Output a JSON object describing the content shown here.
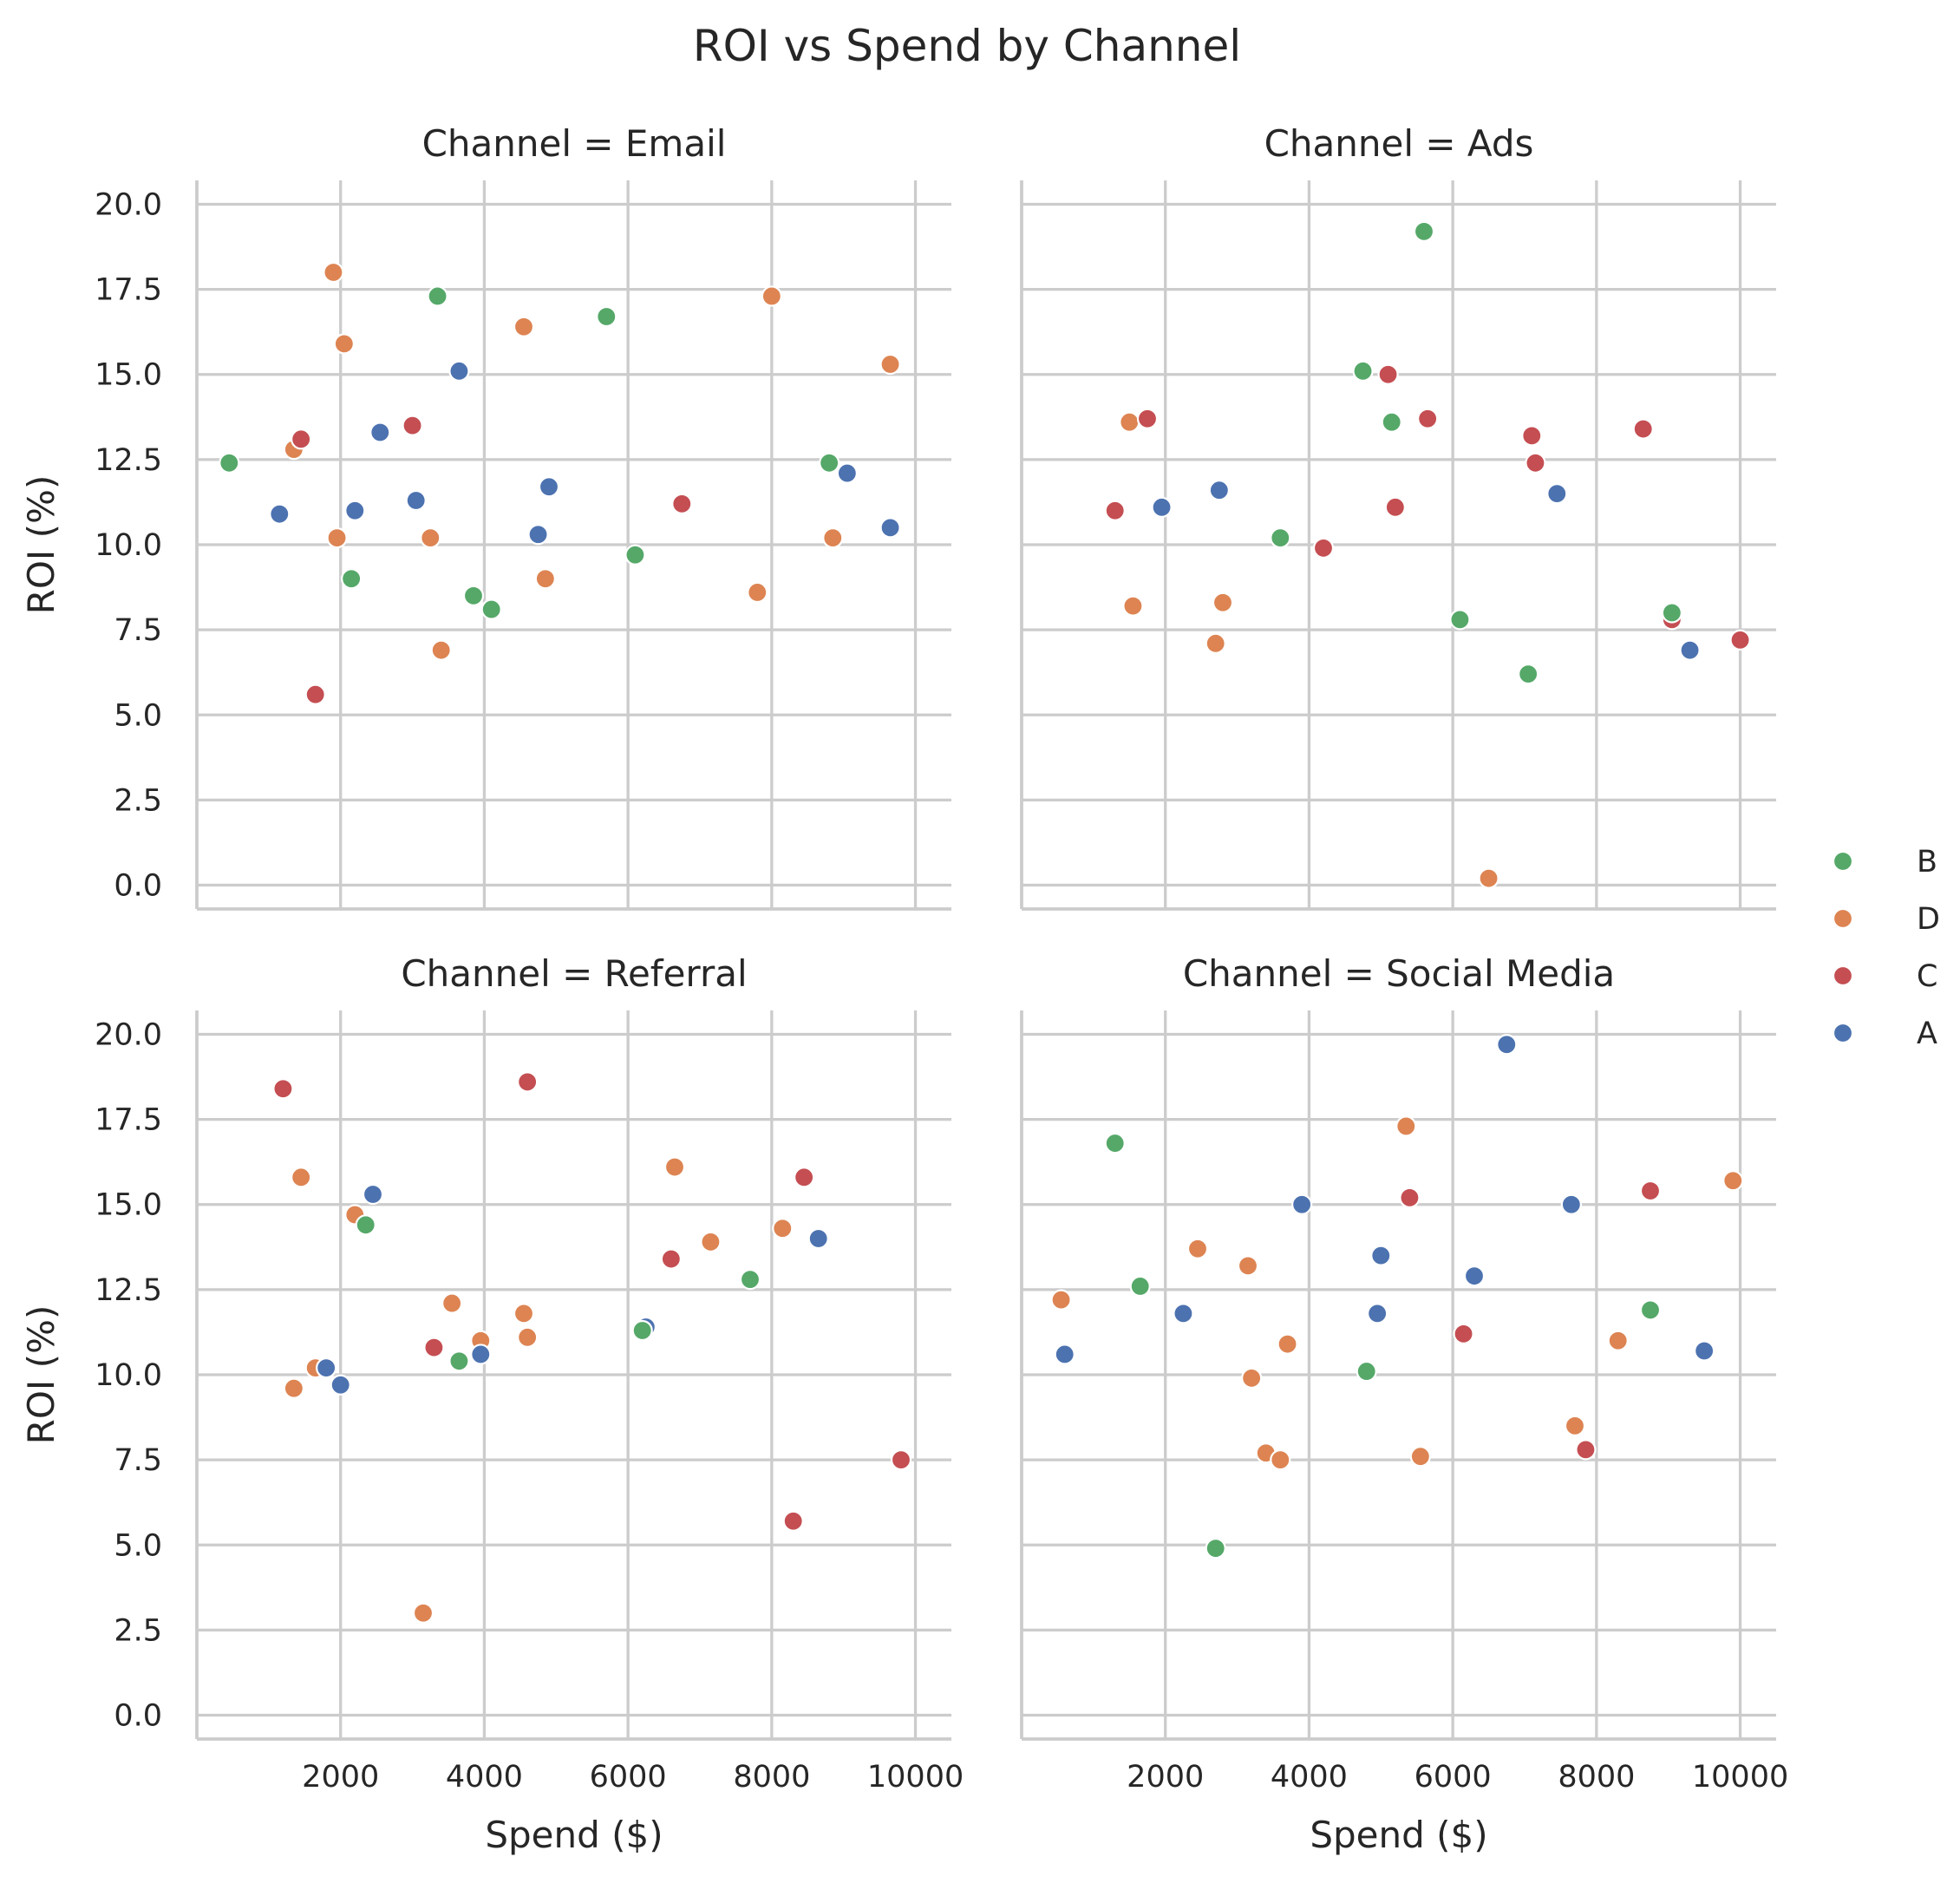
{
  "chart_data": {
    "type": "scatter",
    "title": "ROI vs Spend by Channel",
    "xlabel": "Spend ($)",
    "ylabel": "ROI (%)",
    "xlim": [
      0,
      10500
    ],
    "ylim": [
      -0.7,
      20.7
    ],
    "xticks": [
      2000,
      4000,
      6000,
      8000,
      10000
    ],
    "yticks": [
      0.0,
      2.5,
      5.0,
      7.5,
      10.0,
      12.5,
      15.0,
      17.5,
      20.0
    ],
    "grid": true,
    "legend_position": "right",
    "hue_order": [
      "B",
      "D",
      "C",
      "A"
    ],
    "colors": {
      "B": "#55a868",
      "D": "#dd8452",
      "C": "#c44e52",
      "A": "#4c72b0"
    },
    "facets": [
      {
        "title": "Channel = Email",
        "points": [
          {
            "x": 450,
            "y": 12.4,
            "g": "B"
          },
          {
            "x": 1150,
            "y": 10.9,
            "g": "A"
          },
          {
            "x": 1350,
            "y": 12.8,
            "g": "D"
          },
          {
            "x": 1450,
            "y": 13.1,
            "g": "C"
          },
          {
            "x": 1650,
            "y": 5.6,
            "g": "C"
          },
          {
            "x": 1900,
            "y": 18.0,
            "g": "D"
          },
          {
            "x": 1950,
            "y": 10.2,
            "g": "D"
          },
          {
            "x": 2050,
            "y": 15.9,
            "g": "D"
          },
          {
            "x": 2150,
            "y": 9.0,
            "g": "B"
          },
          {
            "x": 2200,
            "y": 11.0,
            "g": "A"
          },
          {
            "x": 2550,
            "y": 13.3,
            "g": "A"
          },
          {
            "x": 3000,
            "y": 13.5,
            "g": "C"
          },
          {
            "x": 3050,
            "y": 11.3,
            "g": "A"
          },
          {
            "x": 3250,
            "y": 10.2,
            "g": "D"
          },
          {
            "x": 3350,
            "y": 17.3,
            "g": "B"
          },
          {
            "x": 3400,
            "y": 6.9,
            "g": "D"
          },
          {
            "x": 3650,
            "y": 15.1,
            "g": "A"
          },
          {
            "x": 3850,
            "y": 8.5,
            "g": "B"
          },
          {
            "x": 4100,
            "y": 8.1,
            "g": "B"
          },
          {
            "x": 4550,
            "y": 16.4,
            "g": "D"
          },
          {
            "x": 4750,
            "y": 10.3,
            "g": "A"
          },
          {
            "x": 4850,
            "y": 9.0,
            "g": "D"
          },
          {
            "x": 4900,
            "y": 11.7,
            "g": "A"
          },
          {
            "x": 5700,
            "y": 16.7,
            "g": "B"
          },
          {
            "x": 6100,
            "y": 9.7,
            "g": "B"
          },
          {
            "x": 6750,
            "y": 11.2,
            "g": "C"
          },
          {
            "x": 7800,
            "y": 8.6,
            "g": "D"
          },
          {
            "x": 8000,
            "y": 17.3,
            "g": "D"
          },
          {
            "x": 8800,
            "y": 12.4,
            "g": "B"
          },
          {
            "x": 8850,
            "y": 10.2,
            "g": "D"
          },
          {
            "x": 9050,
            "y": 12.1,
            "g": "A"
          },
          {
            "x": 9650,
            "y": 15.3,
            "g": "D"
          },
          {
            "x": 9650,
            "y": 10.5,
            "g": "A"
          }
        ]
      },
      {
        "title": "Channel = Ads",
        "points": [
          {
            "x": 1300,
            "y": 11.0,
            "g": "C"
          },
          {
            "x": 1500,
            "y": 13.6,
            "g": "D"
          },
          {
            "x": 1550,
            "y": 8.2,
            "g": "D"
          },
          {
            "x": 1750,
            "y": 13.7,
            "g": "C"
          },
          {
            "x": 1950,
            "y": 11.1,
            "g": "A"
          },
          {
            "x": 2700,
            "y": 7.1,
            "g": "D"
          },
          {
            "x": 2750,
            "y": 11.6,
            "g": "A"
          },
          {
            "x": 2800,
            "y": 8.3,
            "g": "D"
          },
          {
            "x": 3600,
            "y": 10.2,
            "g": "B"
          },
          {
            "x": 4200,
            "y": 9.9,
            "g": "C"
          },
          {
            "x": 4750,
            "y": 15.1,
            "g": "B"
          },
          {
            "x": 5100,
            "y": 15.0,
            "g": "C"
          },
          {
            "x": 5150,
            "y": 13.6,
            "g": "B"
          },
          {
            "x": 5200,
            "y": 11.1,
            "g": "C"
          },
          {
            "x": 5600,
            "y": 19.2,
            "g": "B"
          },
          {
            "x": 5650,
            "y": 13.7,
            "g": "C"
          },
          {
            "x": 6100,
            "y": 7.8,
            "g": "B"
          },
          {
            "x": 6500,
            "y": 0.2,
            "g": "D"
          },
          {
            "x": 7050,
            "y": 6.2,
            "g": "B"
          },
          {
            "x": 7100,
            "y": 13.2,
            "g": "C"
          },
          {
            "x": 7150,
            "y": 12.4,
            "g": "C"
          },
          {
            "x": 7450,
            "y": 11.5,
            "g": "A"
          },
          {
            "x": 8650,
            "y": 13.4,
            "g": "C"
          },
          {
            "x": 9050,
            "y": 7.8,
            "g": "C"
          },
          {
            "x": 9050,
            "y": 8.0,
            "g": "B"
          },
          {
            "x": 9300,
            "y": 6.9,
            "g": "A"
          },
          {
            "x": 10000,
            "y": 7.2,
            "g": "C"
          }
        ]
      },
      {
        "title": "Channel = Referral",
        "points": [
          {
            "x": 1200,
            "y": 18.4,
            "g": "C"
          },
          {
            "x": 1350,
            "y": 9.6,
            "g": "D"
          },
          {
            "x": 1450,
            "y": 15.8,
            "g": "D"
          },
          {
            "x": 1650,
            "y": 10.2,
            "g": "D"
          },
          {
            "x": 1800,
            "y": 10.2,
            "g": "A"
          },
          {
            "x": 2000,
            "y": 9.7,
            "g": "A"
          },
          {
            "x": 2200,
            "y": 14.7,
            "g": "D"
          },
          {
            "x": 2350,
            "y": 14.4,
            "g": "B"
          },
          {
            "x": 2450,
            "y": 15.3,
            "g": "A"
          },
          {
            "x": 3150,
            "y": 3.0,
            "g": "D"
          },
          {
            "x": 3300,
            "y": 10.8,
            "g": "C"
          },
          {
            "x": 3550,
            "y": 12.1,
            "g": "D"
          },
          {
            "x": 3650,
            "y": 10.4,
            "g": "B"
          },
          {
            "x": 3950,
            "y": 11.0,
            "g": "D"
          },
          {
            "x": 3950,
            "y": 10.6,
            "g": "A"
          },
          {
            "x": 4550,
            "y": 11.8,
            "g": "D"
          },
          {
            "x": 4600,
            "y": 18.6,
            "g": "C"
          },
          {
            "x": 4600,
            "y": 11.1,
            "g": "D"
          },
          {
            "x": 6250,
            "y": 11.4,
            "g": "A"
          },
          {
            "x": 6200,
            "y": 11.3,
            "g": "B"
          },
          {
            "x": 6600,
            "y": 13.4,
            "g": "C"
          },
          {
            "x": 6650,
            "y": 16.1,
            "g": "D"
          },
          {
            "x": 7150,
            "y": 13.9,
            "g": "D"
          },
          {
            "x": 7700,
            "y": 12.8,
            "g": "B"
          },
          {
            "x": 8150,
            "y": 14.3,
            "g": "D"
          },
          {
            "x": 8300,
            "y": 5.7,
            "g": "C"
          },
          {
            "x": 8450,
            "y": 15.8,
            "g": "C"
          },
          {
            "x": 8650,
            "y": 14.0,
            "g": "A"
          },
          {
            "x": 9800,
            "y": 7.5,
            "g": "C"
          }
        ]
      },
      {
        "title": "Channel = Social Media",
        "points": [
          {
            "x": 550,
            "y": 12.2,
            "g": "D"
          },
          {
            "x": 600,
            "y": 10.6,
            "g": "A"
          },
          {
            "x": 1300,
            "y": 16.8,
            "g": "B"
          },
          {
            "x": 1650,
            "y": 12.6,
            "g": "B"
          },
          {
            "x": 2250,
            "y": 11.8,
            "g": "A"
          },
          {
            "x": 2450,
            "y": 13.7,
            "g": "D"
          },
          {
            "x": 2700,
            "y": 4.9,
            "g": "B"
          },
          {
            "x": 3150,
            "y": 13.2,
            "g": "D"
          },
          {
            "x": 3200,
            "y": 9.9,
            "g": "D"
          },
          {
            "x": 3400,
            "y": 7.7,
            "g": "D"
          },
          {
            "x": 3600,
            "y": 7.5,
            "g": "D"
          },
          {
            "x": 3700,
            "y": 10.9,
            "g": "D"
          },
          {
            "x": 3900,
            "y": 15.0,
            "g": "A"
          },
          {
            "x": 4800,
            "y": 10.1,
            "g": "B"
          },
          {
            "x": 4950,
            "y": 11.8,
            "g": "A"
          },
          {
            "x": 5000,
            "y": 13.5,
            "g": "A"
          },
          {
            "x": 5350,
            "y": 17.3,
            "g": "D"
          },
          {
            "x": 5400,
            "y": 15.2,
            "g": "C"
          },
          {
            "x": 5550,
            "y": 7.6,
            "g": "D"
          },
          {
            "x": 6150,
            "y": 11.2,
            "g": "C"
          },
          {
            "x": 6300,
            "y": 12.9,
            "g": "A"
          },
          {
            "x": 6750,
            "y": 19.7,
            "g": "A"
          },
          {
            "x": 7650,
            "y": 15.0,
            "g": "A"
          },
          {
            "x": 7700,
            "y": 8.5,
            "g": "D"
          },
          {
            "x": 7850,
            "y": 7.8,
            "g": "C"
          },
          {
            "x": 8300,
            "y": 11.0,
            "g": "D"
          },
          {
            "x": 8750,
            "y": 15.4,
            "g": "C"
          },
          {
            "x": 8750,
            "y": 11.9,
            "g": "B"
          },
          {
            "x": 9500,
            "y": 10.7,
            "g": "A"
          },
          {
            "x": 9900,
            "y": 15.7,
            "g": "D"
          }
        ]
      }
    ]
  }
}
